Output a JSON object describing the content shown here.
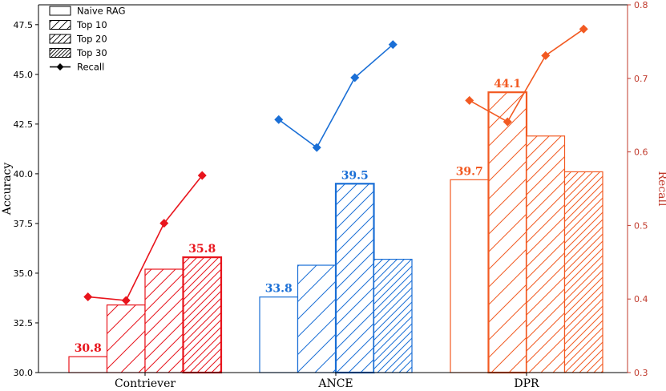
{
  "chart_data": {
    "type": "bar",
    "categories": [
      "Contriever",
      "ANCE",
      "DPR"
    ],
    "category_colors": [
      "#e8141c",
      "#1a6fd6",
      "#f25a22"
    ],
    "y_left": {
      "label": "Accuracy",
      "lim": [
        30.0,
        48.5
      ],
      "ticks": [
        "30.0",
        "32.5",
        "35.0",
        "37.5",
        "40.0",
        "42.5",
        "45.0",
        "47.5"
      ]
    },
    "y_right": {
      "label": "Recall",
      "lim": [
        0.3,
        0.8
      ],
      "ticks": [
        "0.3",
        "0.4",
        "0.5",
        "0.6",
        "0.7",
        "0.8"
      ],
      "color": "#c0392b"
    },
    "series": [
      {
        "name": "Naive RAG",
        "values": [
          30.8,
          33.8,
          39.7
        ],
        "hatch": "none"
      },
      {
        "name": "Top 10",
        "values": [
          33.4,
          35.4,
          44.1
        ],
        "hatch": "sparse"
      },
      {
        "name": "Top 20",
        "values": [
          35.2,
          39.5,
          41.9
        ],
        "hatch": "medium"
      },
      {
        "name": "Top 30",
        "values": [
          35.8,
          35.7,
          40.1
        ],
        "hatch": "dense"
      }
    ],
    "recall": {
      "name": "Recall",
      "values": [
        [
          0.403,
          0.398,
          0.503,
          0.568
        ],
        [
          0.644,
          0.606,
          0.701,
          0.746
        ],
        [
          0.67,
          0.641,
          0.731,
          0.767
        ]
      ]
    },
    "highlight_labels": [
      {
        "category": 0,
        "series": 0,
        "text": "30.8"
      },
      {
        "category": 0,
        "series": 3,
        "text": "35.8"
      },
      {
        "category": 1,
        "series": 0,
        "text": "33.8"
      },
      {
        "category": 1,
        "series": 2,
        "text": "39.5"
      },
      {
        "category": 2,
        "series": 0,
        "text": "39.7"
      },
      {
        "category": 2,
        "series": 1,
        "text": "44.1"
      }
    ],
    "emphasized_bars": [
      [
        0,
        3
      ],
      [
        1,
        2
      ],
      [
        2,
        1
      ]
    ],
    "legend": {
      "position": "top-left",
      "entries": [
        "Naive RAG",
        "Top 10",
        "Top 20",
        "Top 30",
        "Recall"
      ]
    },
    "grid": false
  }
}
